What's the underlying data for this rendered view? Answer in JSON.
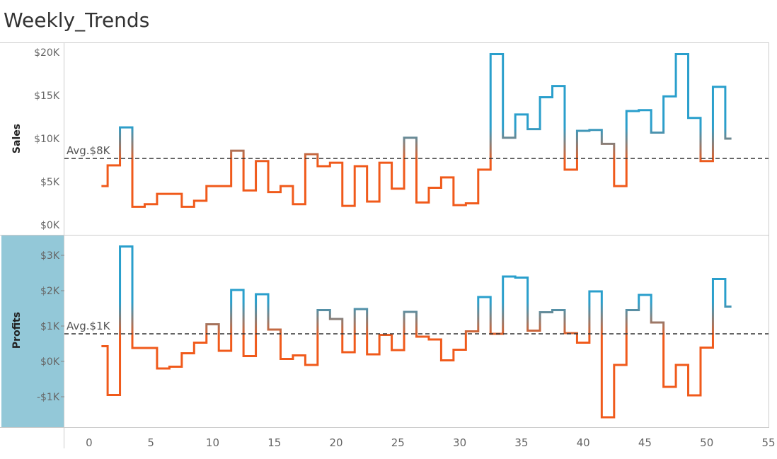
{
  "title": "Weekly_Trends",
  "colors": {
    "above_avg": "#2a9fcc",
    "below_avg": "#f05a1b",
    "avg_line": "#333333",
    "profits_header_bg": "#93c8d8"
  },
  "chart_data": [
    {
      "type": "line",
      "step": true,
      "name": "Sales",
      "ylabel": "Sales",
      "ylim": [
        0,
        20000
      ],
      "yticks": [
        0,
        5000,
        10000,
        15000,
        20000
      ],
      "ytick_labels": [
        "$0K",
        "$5K",
        "$10K",
        "$15K",
        "$20K"
      ],
      "reference_line": {
        "value": 7700,
        "label": "Avg.$8K"
      },
      "x": [
        1,
        2,
        3,
        4,
        5,
        6,
        7,
        8,
        9,
        10,
        11,
        12,
        13,
        14,
        15,
        16,
        17,
        18,
        19,
        20,
        21,
        22,
        23,
        24,
        25,
        26,
        27,
        28,
        29,
        30,
        31,
        32,
        33,
        34,
        35,
        36,
        37,
        38,
        39,
        40,
        41,
        42,
        43,
        44,
        45,
        46,
        47,
        48,
        49,
        50,
        51,
        52
      ],
      "values": [
        4500,
        6900,
        11300,
        2100,
        2400,
        3600,
        3600,
        2100,
        2800,
        4500,
        4500,
        8600,
        4000,
        7400,
        3800,
        4500,
        2400,
        8200,
        6800,
        7200,
        2200,
        6800,
        2700,
        7200,
        4200,
        10100,
        2600,
        4300,
        5500,
        2300,
        2500,
        6400,
        19800,
        10100,
        12800,
        11100,
        14800,
        16100,
        6400,
        10900,
        11000,
        9400,
        4500,
        13200,
        13300,
        10700,
        14900,
        19800,
        12400,
        7400,
        16000,
        10000
      ],
      "xlim": [
        -2,
        55
      ],
      "xticks": [
        0,
        5,
        10,
        15,
        20,
        25,
        30,
        35,
        40,
        45,
        50,
        55
      ]
    },
    {
      "type": "line",
      "step": true,
      "name": "Profits",
      "ylabel": "Profits",
      "ylim": [
        -1600,
        3300
      ],
      "yticks": [
        -1000,
        0,
        1000,
        2000,
        3000
      ],
      "ytick_labels": [
        "-$1K",
        "$0K",
        "$1K",
        "$2K",
        "$3K"
      ],
      "reference_line": {
        "value": 780,
        "label": "Avg.$1K"
      },
      "x": [
        1,
        2,
        3,
        4,
        5,
        6,
        7,
        8,
        9,
        10,
        11,
        12,
        13,
        14,
        15,
        16,
        17,
        18,
        19,
        20,
        21,
        22,
        23,
        24,
        25,
        26,
        27,
        28,
        29,
        30,
        31,
        32,
        33,
        34,
        35,
        36,
        37,
        38,
        39,
        40,
        41,
        42,
        43,
        44,
        45,
        46,
        47,
        48,
        49,
        50,
        51,
        52
      ],
      "values": [
        430,
        -950,
        3250,
        380,
        380,
        -200,
        -150,
        230,
        530,
        1050,
        300,
        2020,
        150,
        1900,
        900,
        70,
        170,
        -100,
        1450,
        1200,
        260,
        1480,
        200,
        750,
        320,
        1400,
        700,
        620,
        30,
        330,
        850,
        1820,
        780,
        2400,
        2370,
        870,
        1390,
        1450,
        800,
        530,
        1980,
        -1580,
        -100,
        1450,
        1880,
        1100,
        -720,
        -100,
        -960,
        390,
        2330,
        1550
      ],
      "xlim": [
        -2,
        55
      ],
      "xticks": [
        0,
        5,
        10,
        15,
        20,
        25,
        30,
        35,
        40,
        45,
        50,
        55
      ]
    }
  ]
}
